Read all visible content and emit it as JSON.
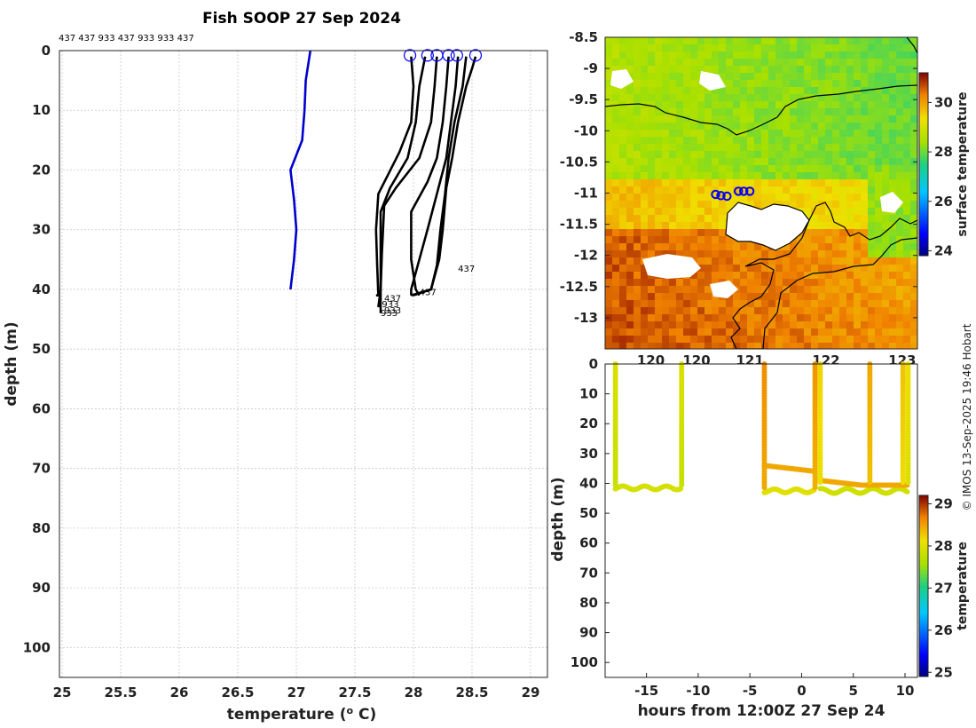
{
  "title": "Fish SOOP 27 Sep 2024",
  "credit": "© IMOS 13-Sep-2025 19:46 Hobart",
  "id_header": "437 437 933 437 933 933 437",
  "colors": {
    "profile": "#000000",
    "climatology": "#0000cc",
    "marker": "#0000ff",
    "grid": "#c8c8c8",
    "coast": "#000000"
  },
  "chart_data": [
    {
      "type": "line",
      "title": "Fish SOOP 27 Sep 2024",
      "xlabel": "temperature (o C)",
      "ylabel": "depth (m)",
      "xlim": [
        25,
        29
      ],
      "ylim": [
        105,
        0
      ],
      "xticks": [
        "25",
        "25.5",
        "26",
        "26.5",
        "27",
        "27.5",
        "28",
        "28.5",
        "29"
      ],
      "yticks": [
        "0",
        "10",
        "20",
        "30",
        "40",
        "50",
        "60",
        "70",
        "80",
        "90",
        "100"
      ],
      "grid": true,
      "series": [
        {
          "values": [
            [
              27.12,
              0
            ],
            [
              27.08,
              5
            ],
            [
              27.07,
              10
            ],
            [
              27.05,
              15
            ],
            [
              26.95,
              20
            ],
            [
              26.98,
              25
            ],
            [
              27.0,
              30
            ],
            [
              26.98,
              35
            ],
            [
              26.95,
              40
            ]
          ]
        },
        {
          "values": [
            [
              28.53,
              1
            ],
            [
              28.5,
              3
            ],
            [
              28.45,
              6
            ],
            [
              28.38,
              12
            ],
            [
              28.33,
              18
            ],
            [
              28.28,
              23
            ],
            [
              28.25,
              30
            ],
            [
              28.22,
              35
            ],
            [
              28.15,
              40
            ],
            [
              28.0,
              41
            ]
          ]
        },
        {
          "values": [
            [
              28.45,
              1
            ],
            [
              28.42,
              6
            ],
            [
              28.35,
              12
            ],
            [
              28.3,
              18
            ],
            [
              28.27,
              24
            ],
            [
              28.23,
              30
            ],
            [
              28.2,
              36
            ],
            [
              28.15,
              40
            ],
            [
              27.98,
              41
            ]
          ]
        },
        {
          "values": [
            [
              28.38,
              1
            ],
            [
              28.36,
              6
            ],
            [
              28.32,
              12
            ],
            [
              28.28,
              18
            ],
            [
              28.2,
              24
            ],
            [
              28.12,
              30
            ],
            [
              28.05,
              35
            ],
            [
              27.98,
              40
            ],
            [
              27.98,
              41
            ]
          ]
        },
        {
          "values": [
            [
              28.3,
              1
            ],
            [
              28.28,
              6
            ],
            [
              28.25,
              12
            ],
            [
              28.2,
              18
            ],
            [
              28.12,
              22
            ],
            [
              27.98,
              27
            ],
            [
              27.98,
              35
            ],
            [
              28.02,
              40
            ],
            [
              28.05,
              41
            ]
          ]
        },
        {
          "values": [
            [
              28.2,
              1
            ],
            [
              28.18,
              6
            ],
            [
              28.15,
              12
            ],
            [
              28.05,
              18
            ],
            [
              27.85,
              23
            ],
            [
              27.75,
              26
            ],
            [
              27.73,
              34
            ],
            [
              27.72,
              40
            ],
            [
              27.7,
              43
            ]
          ]
        },
        {
          "values": [
            [
              28.1,
              1
            ],
            [
              28.05,
              6
            ],
            [
              28.02,
              12
            ],
            [
              27.95,
              18
            ],
            [
              27.8,
              23
            ],
            [
              27.72,
              27
            ],
            [
              27.72,
              35
            ],
            [
              27.72,
              40
            ],
            [
              27.72,
              44
            ]
          ]
        },
        {
          "values": [
            [
              27.98,
              1
            ],
            [
              28.0,
              6
            ],
            [
              27.98,
              12
            ],
            [
              27.88,
              17
            ],
            [
              27.7,
              24
            ],
            [
              27.68,
              30
            ],
            [
              27.69,
              36
            ],
            [
              27.7,
              41
            ],
            [
              27.68,
              41
            ]
          ]
        }
      ],
      "start_markers_x": [
        27.97,
        28.12,
        28.2,
        28.3,
        28.37,
        28.53
      ],
      "annotations": [
        {
          "text": "437",
          "x": 28.38,
          "y": 37
        },
        {
          "text": "437",
          "x": 28.05,
          "y": 41
        },
        {
          "text": "437",
          "x": 27.75,
          "y": 42
        },
        {
          "text": "933",
          "x": 27.73,
          "y": 43
        },
        {
          "text": "933",
          "x": 27.75,
          "y": 44
        },
        {
          "text": "933",
          "x": 27.72,
          "y": 44.5
        }
      ]
    },
    {
      "type": "heatmap",
      "xlabel": "",
      "ylabel": "",
      "xlim": [
        119.1,
        123.2
      ],
      "ylim": [
        -13.5,
        -8.5
      ],
      "xticks": [
        "120",
        "120",
        "121",
        "122",
        "123"
      ],
      "yticks": [
        "-8.5",
        "-9",
        "-9.5",
        "-10",
        "-10.5",
        "-11",
        "-11.5",
        "-12",
        "-12.5",
        "-13"
      ],
      "colorbar_label": "surface temperature",
      "colorbar_ticks": [
        "24",
        "26",
        "28",
        "30"
      ],
      "clim": [
        23.8,
        31.2
      ],
      "track_points": [
        [
          120.55,
          -11.02
        ],
        [
          120.62,
          -11.04
        ],
        [
          120.7,
          -11.05
        ],
        [
          120.85,
          -10.97
        ],
        [
          120.92,
          -10.97
        ],
        [
          121.0,
          -10.97
        ]
      ]
    },
    {
      "type": "scatter",
      "xlabel": "hours from 12:00Z 27 Sep 24",
      "ylabel": "depth (m)",
      "xlim": [
        -19,
        11.2
      ],
      "ylim": [
        105,
        0
      ],
      "xticks": [
        "-15",
        "-10",
        "-5",
        "0",
        "5",
        "10"
      ],
      "yticks": [
        "0",
        "10",
        "20",
        "30",
        "40",
        "50",
        "60",
        "70",
        "80",
        "90",
        "100"
      ],
      "colorbar_label": "temperature",
      "colorbar_ticks": [
        "25",
        "26",
        "27",
        "28",
        "29"
      ],
      "clim": [
        24.9,
        29.2
      ],
      "casts_hours": [
        -18,
        -11.6,
        -3.6,
        1.3,
        1.8,
        6.6,
        9.8,
        10.3
      ]
    }
  ]
}
